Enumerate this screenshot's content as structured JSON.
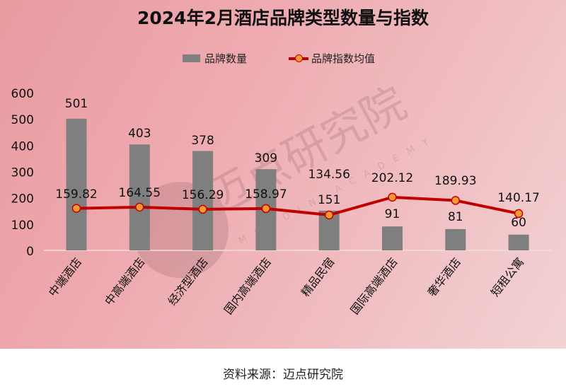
{
  "title": "2024年2月酒店品牌类型数量与指数",
  "legend": {
    "bar_label": "品牌数量",
    "line_label": "品牌指数均值"
  },
  "watermark": {
    "text": "迈点研究院",
    "subtext": "MEADIN ACADEMY"
  },
  "source": "资料来源：迈点研究院",
  "colors": {
    "bar": "#7f7f7f",
    "line": "#c00000",
    "marker_fill": "#f39a35",
    "background_start": "#e99ba0",
    "background_end": "#f3d3d5"
  },
  "chart_data": {
    "type": "bar+line",
    "title": "2024年2月酒店品牌类型数量与指数",
    "xlabel": "",
    "ylabel": "",
    "ylim": [
      0,
      600
    ],
    "yticks": [
      0,
      100,
      200,
      300,
      400,
      500,
      600
    ],
    "grid": false,
    "legend_position": "top",
    "categories": [
      "中端酒店",
      "中高端酒店",
      "经济型酒店",
      "国内高端酒店",
      "精品民宿",
      "国际高端酒店",
      "奢华酒店",
      "短租公寓"
    ],
    "series": [
      {
        "name": "品牌数量",
        "type": "bar",
        "values": [
          501,
          403,
          378,
          309,
          151,
          91,
          81,
          60
        ]
      },
      {
        "name": "品牌指数均值",
        "type": "line",
        "values": [
          159.82,
          164.55,
          156.29,
          158.97,
          134.56,
          202.12,
          189.93,
          140.17
        ]
      }
    ]
  }
}
